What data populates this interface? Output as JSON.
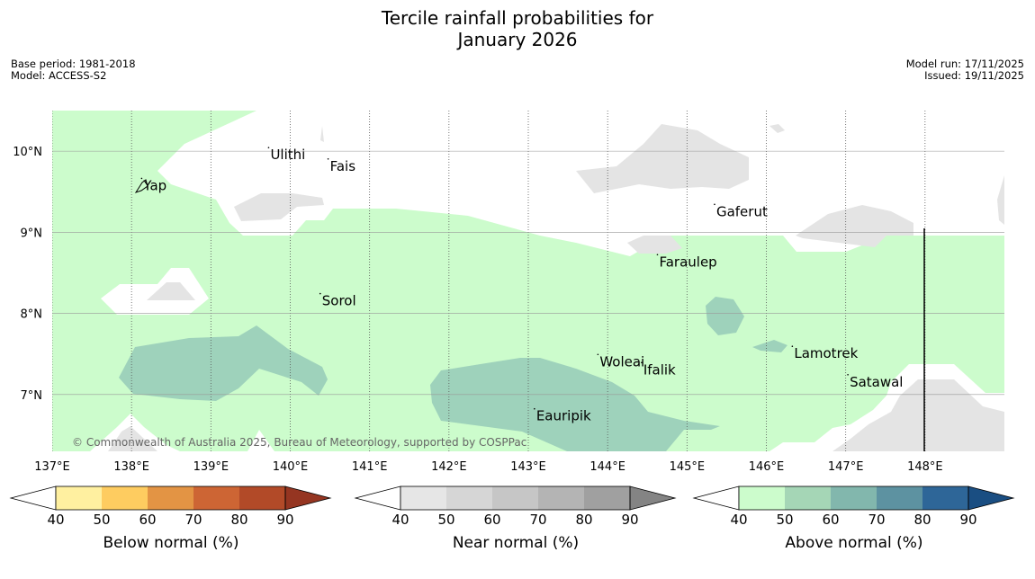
{
  "title": {
    "line1": "Tercile rainfall probabilities for",
    "line2": "January 2026"
  },
  "info": {
    "base_period": "Base period: 1981-2018",
    "model": "Model: ACCESS-S2",
    "model_run": "Model run: 17/11/2025",
    "issued": "Issued: 19/11/2025"
  },
  "map": {
    "lon_range": [
      137,
      149
    ],
    "lat_range": [
      6.3,
      10.5
    ],
    "lon_ticks": [
      {
        "value": 137,
        "label": "137°E"
      },
      {
        "value": 138,
        "label": "138°E"
      },
      {
        "value": 139,
        "label": "139°E"
      },
      {
        "value": 140,
        "label": "140°E"
      },
      {
        "value": 141,
        "label": "141°E"
      },
      {
        "value": 142,
        "label": "142°E"
      },
      {
        "value": 143,
        "label": "143°E"
      },
      {
        "value": 144,
        "label": "144°E"
      },
      {
        "value": 145,
        "label": "145°E"
      },
      {
        "value": 146,
        "label": "146°E"
      },
      {
        "value": 147,
        "label": "147°E"
      },
      {
        "value": 148,
        "label": "148°E"
      }
    ],
    "lat_ticks": [
      {
        "value": 10,
        "label": "10°N"
      },
      {
        "value": 9,
        "label": "9°N"
      },
      {
        "value": 8,
        "label": "8°N"
      },
      {
        "value": 7,
        "label": "7°N"
      }
    ],
    "places": [
      {
        "name": "Ulithi",
        "lon": 139.75,
        "lat": 9.9
      },
      {
        "name": "Fais",
        "lon": 140.5,
        "lat": 9.76
      },
      {
        "name": "Yap",
        "lon": 138.15,
        "lat": 9.52
      },
      {
        "name": "Gaferut",
        "lon": 145.37,
        "lat": 9.2
      },
      {
        "name": "Faraulep",
        "lon": 144.65,
        "lat": 8.58
      },
      {
        "name": "Sorol",
        "lon": 140.4,
        "lat": 8.1
      },
      {
        "name": "Woleai",
        "lon": 143.9,
        "lat": 7.35
      },
      {
        "name": "Ifalik",
        "lon": 144.45,
        "lat": 7.25
      },
      {
        "name": "Lamotrek",
        "lon": 146.35,
        "lat": 7.45
      },
      {
        "name": "Satawal",
        "lon": 147.05,
        "lat": 7.1
      },
      {
        "name": "Eauripik",
        "lon": 143.1,
        "lat": 6.68
      }
    ],
    "copyright": "© Commonwealth of Australia 2025, Bureau of Meteorology, supported by COSPPac",
    "colors": {
      "above_50": "#ccfccc",
      "above_60": "#9ed2bb",
      "near_50": "#e4e4e4",
      "nodata": "#ffffff"
    }
  },
  "colorbars": [
    {
      "label": "Below normal (%)",
      "ticks": [
        "40",
        "50",
        "60",
        "70",
        "80",
        "90"
      ],
      "colors": [
        "#fff0a0",
        "#fecc60",
        "#e39444",
        "#cd6534",
        "#b24a28",
        "#953521"
      ]
    },
    {
      "label": "Near normal (%)",
      "ticks": [
        "40",
        "50",
        "60",
        "70",
        "80",
        "90"
      ],
      "colors": [
        "#e6e6e6",
        "#d6d6d6",
        "#c6c6c6",
        "#b4b4b4",
        "#a0a0a0",
        "#848484"
      ]
    },
    {
      "label": "Above normal (%)",
      "ticks": [
        "40",
        "50",
        "60",
        "70",
        "80",
        "90"
      ],
      "colors": [
        "#ccfccc",
        "#a5d6b6",
        "#82b7ad",
        "#5d92a1",
        "#2e6698",
        "#1a4e82"
      ]
    }
  ]
}
